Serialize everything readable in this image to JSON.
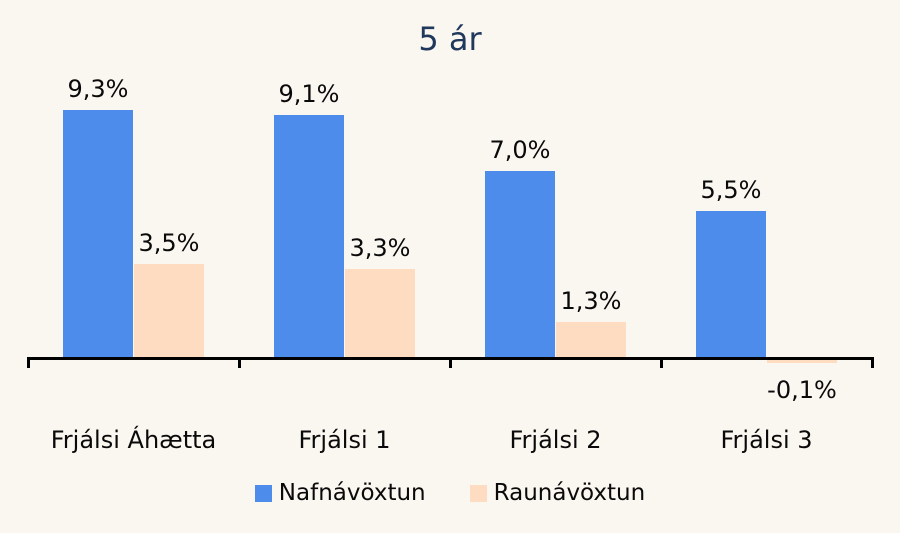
{
  "colors": {
    "background": "#FAF6F0",
    "title_text": "#1F385C",
    "axis": "#000000",
    "data_label": "#0A0A0A"
  },
  "chart_data": {
    "type": "bar",
    "title": "5 ár",
    "categories": [
      "Frjálsi Áhætta",
      "Frjálsi 1",
      "Frjálsi 2",
      "Frjálsi 3"
    ],
    "series": [
      {
        "name": "Nafnávöxtun",
        "color": "#4E8CEB",
        "values": [
          9.3,
          9.1,
          7.0,
          5.5
        ],
        "labels": [
          "9,3%",
          "9,1%",
          "7,0%",
          "5,5%"
        ]
      },
      {
        "name": "Raunávöxtun",
        "color": "#FDDCC1",
        "values": [
          3.5,
          3.3,
          1.3,
          -0.1
        ],
        "labels": [
          "3,5%",
          "3,3%",
          "1,3%",
          "-0,1%"
        ]
      }
    ],
    "ylim": [
      -0.5,
      10.5
    ],
    "value_format": "comma-decimal percent",
    "grid": false,
    "y_axis_visible": false,
    "legend_position": "bottom"
  }
}
